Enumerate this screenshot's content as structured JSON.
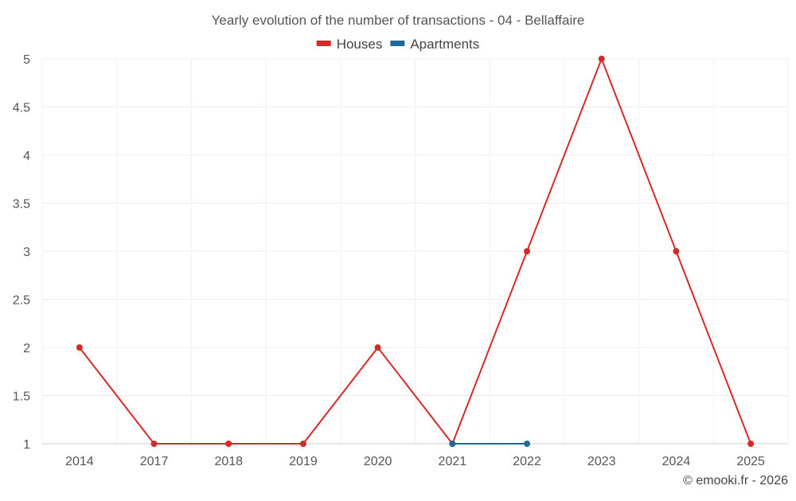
{
  "chart_data": {
    "type": "line",
    "title": "Yearly evolution of the number of transactions - 04 - Bellaffaire",
    "xlabel": "",
    "ylabel": "",
    "categories": [
      "2014",
      "2017",
      "2018",
      "2019",
      "2020",
      "2021",
      "2022",
      "2023",
      "2024",
      "2025"
    ],
    "ylim": [
      1,
      5
    ],
    "yticks": [
      "1",
      "1.5",
      "2",
      "2.5",
      "3",
      "3.5",
      "4",
      "4.5",
      "5"
    ],
    "grid": true,
    "legend_position": "top-center",
    "series": [
      {
        "name": "Houses",
        "color": "#d32a2a",
        "values": [
          2,
          1,
          1,
          1,
          2,
          1,
          3,
          5,
          3,
          1
        ]
      },
      {
        "name": "Apartments",
        "color": "#1f6a9a",
        "values": [
          null,
          null,
          null,
          null,
          null,
          1,
          1,
          null,
          null,
          null
        ]
      }
    ]
  },
  "footer": {
    "credit": "© emooki.fr - 2026"
  }
}
